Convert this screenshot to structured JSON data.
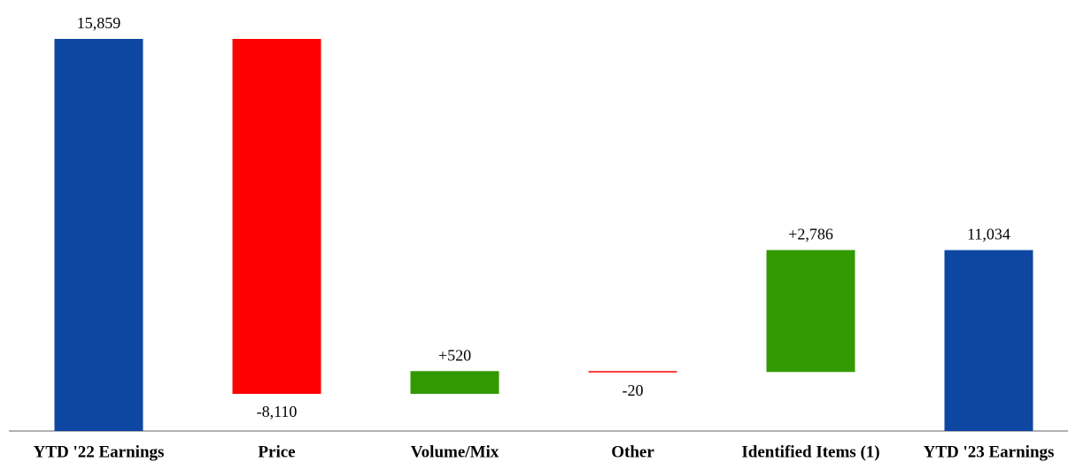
{
  "chart_data": {
    "type": "waterfall",
    "categories": [
      "YTD '22 Earnings",
      "Price",
      "Volume/Mix",
      "Other",
      "Identified Items (1)",
      "YTD '23 Earnings"
    ],
    "values": [
      15859,
      -8110,
      520,
      -20,
      2786,
      11034
    ],
    "value_labels": [
      "15,859",
      "-8,110",
      "+520",
      "-20",
      "+2,786",
      "11,034"
    ],
    "measure": [
      "absolute",
      "relative",
      "relative",
      "relative",
      "relative",
      "absolute"
    ],
    "colors": {
      "absolute": "#0d47a1",
      "increase": "#339900",
      "decrease": "#ff0000"
    },
    "ylim": [
      6900,
      16000
    ]
  }
}
